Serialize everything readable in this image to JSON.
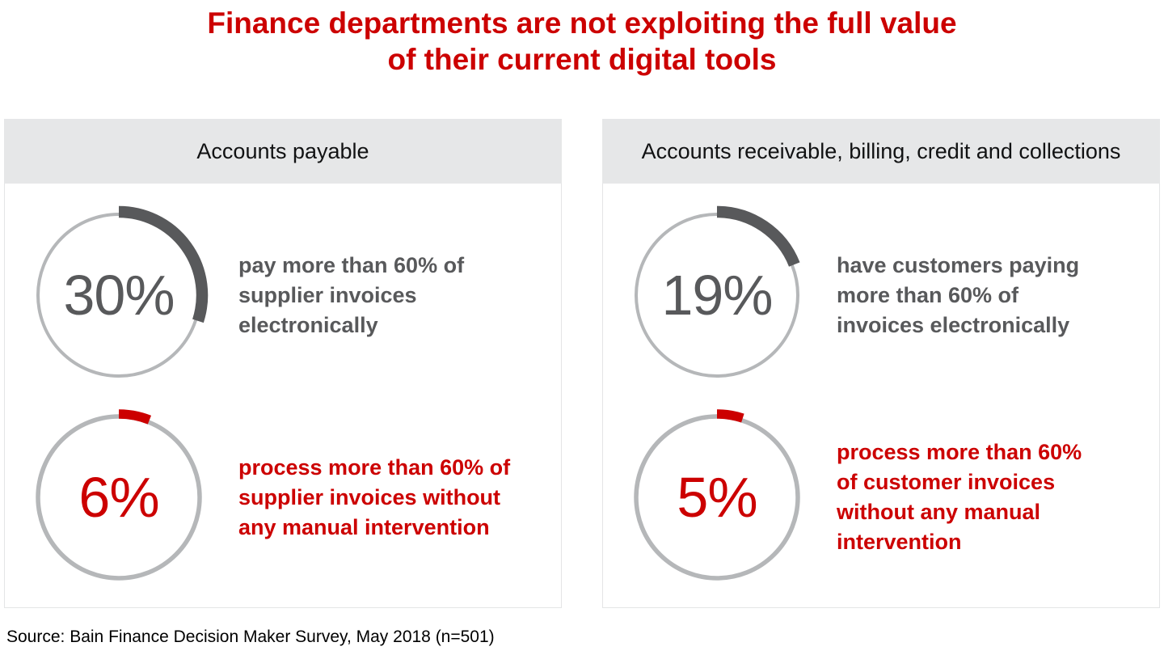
{
  "title_lines": [
    "Finance departments are not exploiting the full value",
    "of their current digital tools"
  ],
  "source": "Source: Bain Finance Decision Maker Survey, May 2018 (n=501)",
  "colors": {
    "red": "#cc0000",
    "dark_gray": "#58595b",
    "ring_gray": "#b5b7b9",
    "header_bg": "#e6e7e8",
    "panel_border": "#e4e5e6"
  },
  "chart_data": {
    "type": "donut",
    "unit": "%",
    "title": "Finance departments are not exploiting the full value of their current digital tools",
    "panels": [
      {
        "header": "Accounts payable",
        "stats": [
          {
            "value": 30,
            "label": "30%",
            "color": "#58595b",
            "description": "pay more than 60% of supplier invoices electronically",
            "desc_lines": [
              "pay more than 60% of",
              "supplier invoices",
              "electronically"
            ]
          },
          {
            "value": 6,
            "label": "6%",
            "color": "#cc0000",
            "description": "process more than 60% of supplier invoices without any manual intervention",
            "desc_lines": [
              "process more than 60% of",
              "supplier invoices without",
              "any manual intervention"
            ]
          }
        ]
      },
      {
        "header": "Accounts receivable, billing, credit and collections",
        "stats": [
          {
            "value": 19,
            "label": "19%",
            "color": "#58595b",
            "description": "have customers paying more than 60% of invoices electronically",
            "desc_lines": [
              "have customers paying",
              "more than 60% of",
              "invoices electronically"
            ]
          },
          {
            "value": 5,
            "label": "5%",
            "color": "#cc0000",
            "description": "process more than 60% of customer invoices without any manual intervention",
            "desc_lines": [
              "process more than 60%",
              "of customer invoices",
              "without any manual",
              "intervention"
            ]
          }
        ]
      }
    ]
  }
}
